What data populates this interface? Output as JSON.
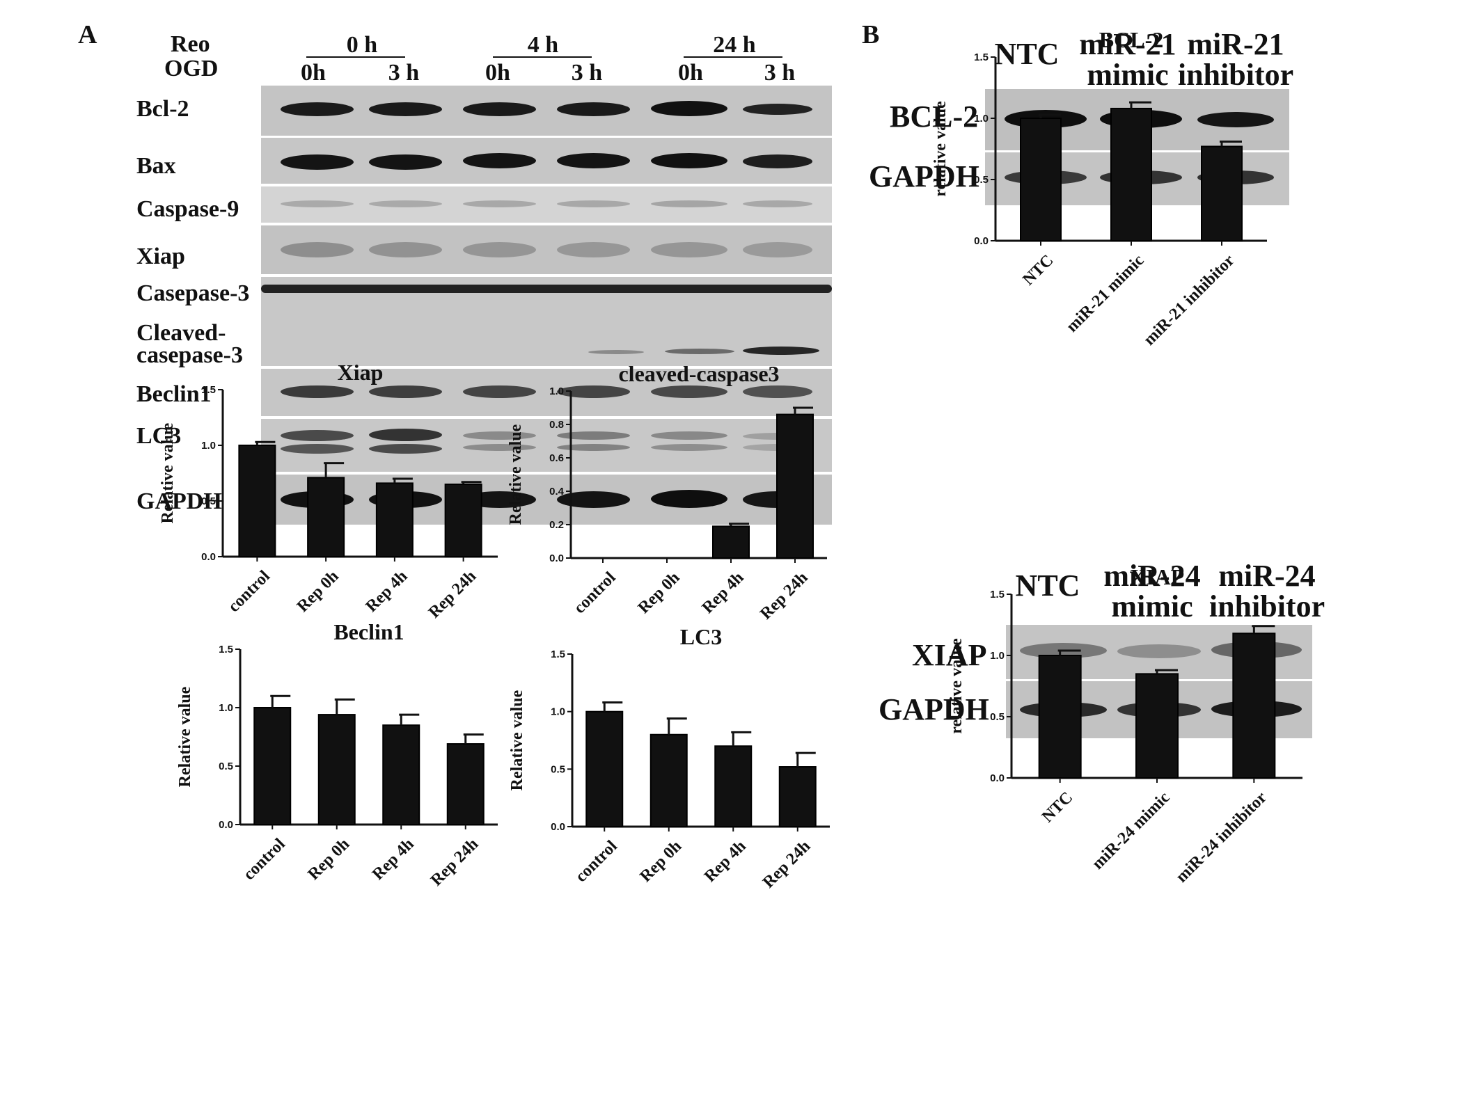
{
  "panelA": {
    "letter": "A",
    "row_headers": [
      "Reo",
      "OGD"
    ],
    "reo_groups": [
      "0 h",
      "4 h",
      "24 h"
    ],
    "ogd_lanes": [
      "0h",
      "3 h",
      "0h",
      "3 h",
      "0h",
      "3 h"
    ],
    "blot_labels": [
      "Bcl-2",
      "Bax",
      "Caspase-9",
      "Xiap",
      "Casepase-3",
      "Cleaved-",
      "casepase-3",
      "Beclin1",
      "LC3",
      "GAPDH"
    ]
  },
  "panelB": {
    "letter": "B",
    "blot1_headers": [
      "NTC",
      "miR-21",
      "mimic",
      "miR-21",
      "inhibitor"
    ],
    "blot1_labels": [
      "BCL-2",
      "GAPDH"
    ],
    "blot2_headers": [
      "NTC",
      "miR-24",
      "mimic",
      "miR-24",
      "inhibitor"
    ],
    "blot2_labels": [
      "XIAP",
      "GAPDH"
    ]
  },
  "chart_data": [
    {
      "id": "xiap",
      "type": "bar",
      "title": "Xiap",
      "ylabel": "Relative value",
      "categories": [
        "control",
        "Rep 0h",
        "Rep 4h",
        "Rep 24h"
      ],
      "values": [
        1.0,
        0.71,
        0.66,
        0.65
      ],
      "errors": [
        0.03,
        0.13,
        0.04,
        0.02
      ],
      "ylim": [
        0,
        1.5
      ],
      "yticks": [
        "0.0",
        "0.5",
        "1.0",
        "1.5"
      ],
      "tickvals": [
        0,
        0.5,
        1.0,
        1.5
      ]
    },
    {
      "id": "cc3",
      "type": "bar",
      "title": "cleaved-caspase3",
      "ylabel": "Relative value",
      "categories": [
        "control",
        "Rep 0h",
        "Rep 4h",
        "Rep 24h"
      ],
      "values": [
        0.0,
        0.0,
        0.19,
        0.86
      ],
      "errors": [
        0,
        0,
        0.015,
        0.04
      ],
      "ylim": [
        0,
        1.0
      ],
      "yticks": [
        "0.0",
        "0.2",
        "0.4",
        "0.6",
        "0.8",
        "1.0"
      ],
      "tickvals": [
        0,
        0.2,
        0.4,
        0.6,
        0.8,
        1.0
      ]
    },
    {
      "id": "beclin",
      "type": "bar",
      "title": "Beclin1",
      "ylabel": "Relative value",
      "categories": [
        "control",
        "Rep 0h",
        "Rep 4h",
        "Rep 24h"
      ],
      "values": [
        1.0,
        0.94,
        0.85,
        0.69
      ],
      "errors": [
        0.1,
        0.13,
        0.09,
        0.08
      ],
      "ylim": [
        0,
        1.5
      ],
      "yticks": [
        "0.0",
        "0.5",
        "1.0",
        "1.5"
      ],
      "tickvals": [
        0,
        0.5,
        1.0,
        1.5
      ]
    },
    {
      "id": "lc3",
      "type": "bar",
      "title": "LC3",
      "ylabel": "Relative value",
      "categories": [
        "control",
        "Rep 0h",
        "Rep 4h",
        "Rep 24h"
      ],
      "values": [
        1.0,
        0.8,
        0.7,
        0.52
      ],
      "errors": [
        0.08,
        0.14,
        0.12,
        0.12
      ],
      "ylim": [
        0,
        1.5
      ],
      "yticks": [
        "0.0",
        "0.5",
        "1.0",
        "1.5"
      ],
      "tickvals": [
        0,
        0.5,
        1.0,
        1.5
      ]
    },
    {
      "id": "bcl2",
      "type": "bar",
      "title": "BCL-2",
      "ylabel": "relative value",
      "categories": [
        "NTC",
        "miR-21 mimic",
        "miR-21 inhibitor"
      ],
      "values": [
        1.0,
        1.08,
        0.77
      ],
      "errors": [
        0.03,
        0.05,
        0.04
      ],
      "ylim": [
        0,
        1.5
      ],
      "yticks": [
        "0.0",
        "0.5",
        "1.0",
        "1.5"
      ],
      "tickvals": [
        0,
        0.5,
        1.0,
        1.5
      ]
    },
    {
      "id": "xiapB",
      "type": "bar",
      "title": "XIAP",
      "ylabel": "relative value",
      "categories": [
        "NTC",
        "miR-24 mimic",
        "miR-24 inhibitor"
      ],
      "values": [
        1.0,
        0.85,
        1.18
      ],
      "errors": [
        0.04,
        0.03,
        0.06
      ],
      "ylim": [
        0,
        1.5
      ],
      "yticks": [
        "0.0",
        "0.5",
        "1.0",
        "1.5"
      ],
      "tickvals": [
        0,
        0.5,
        1.0,
        1.5
      ]
    }
  ]
}
